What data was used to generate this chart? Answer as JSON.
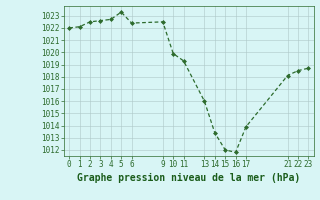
{
  "x": [
    0,
    1,
    2,
    3,
    4,
    5,
    6,
    9,
    10,
    11,
    13,
    14,
    15,
    16,
    17,
    21,
    22,
    23
  ],
  "y": [
    1022.0,
    1022.1,
    1022.5,
    1022.6,
    1022.7,
    1023.3,
    1022.4,
    1022.5,
    1019.9,
    1019.3,
    1016.0,
    1013.4,
    1012.0,
    1011.8,
    1013.9,
    1018.1,
    1018.5,
    1018.7
  ],
  "line_color": "#2d6b2d",
  "marker": "D",
  "marker_size": 2.0,
  "linewidth": 0.9,
  "bg_color": "#d8f5f5",
  "grid_color": "#adc8c8",
  "xlabel": "Graphe pression niveau de la mer (hPa)",
  "xlabel_fontsize": 7,
  "xlabel_fontweight": "bold",
  "xlabel_color": "#1a5c1a",
  "tick_color": "#2d6b2d",
  "tick_fontsize": 5.5,
  "xticks": [
    0,
    1,
    2,
    3,
    4,
    5,
    6,
    9,
    10,
    11,
    13,
    14,
    15,
    16,
    17,
    21,
    22,
    23
  ],
  "yticks": [
    1012,
    1013,
    1014,
    1015,
    1016,
    1017,
    1018,
    1019,
    1020,
    1021,
    1022,
    1023
  ],
  "xlim": [
    -0.5,
    23.5
  ],
  "ylim": [
    1011.5,
    1023.8
  ]
}
